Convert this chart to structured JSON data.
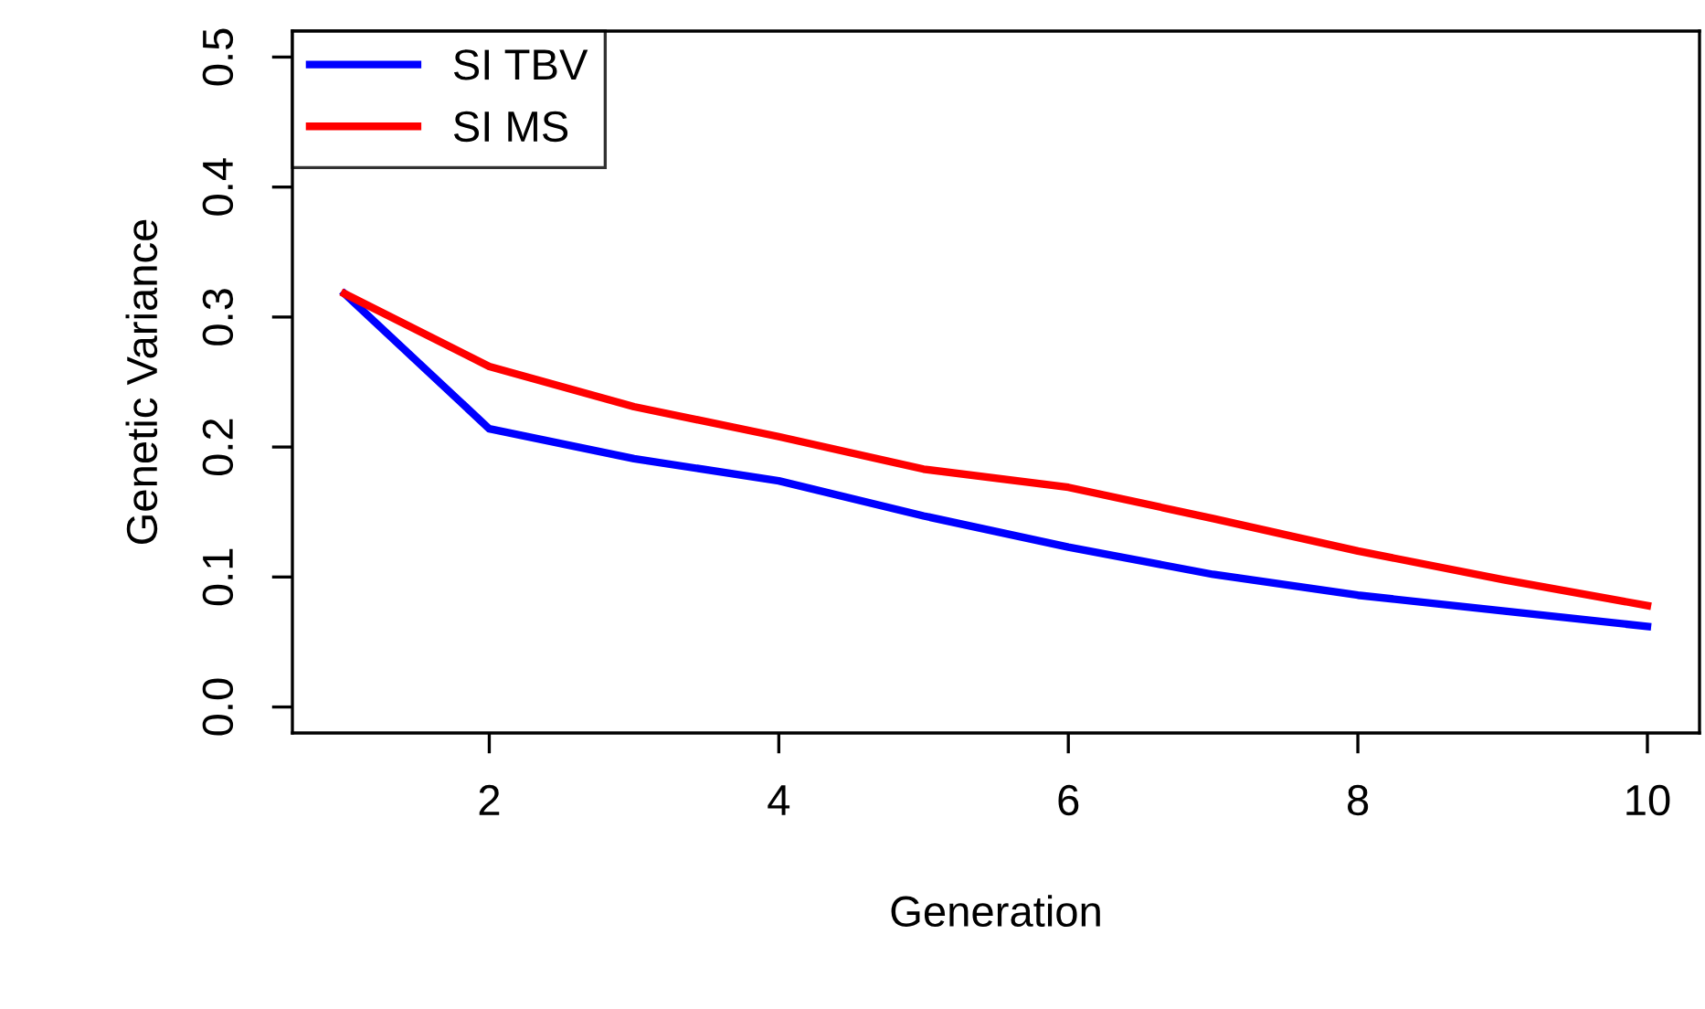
{
  "chart_data": {
    "type": "line",
    "xlabel": "Generation",
    "ylabel": "Genetic Variance",
    "x": [
      1,
      2,
      3,
      4,
      5,
      6,
      7,
      8,
      9,
      10
    ],
    "series": [
      {
        "name": "SI TBV",
        "color": "#0000ff",
        "values": [
          0.318,
          0.214,
          0.191,
          0.174,
          0.147,
          0.123,
          0.102,
          0.086,
          0.074,
          0.062
        ]
      },
      {
        "name": "SI MS",
        "color": "#ff0000",
        "values": [
          0.318,
          0.262,
          0.231,
          0.208,
          0.183,
          0.169,
          0.145,
          0.12,
          0.098,
          0.078
        ]
      }
    ],
    "xlim": [
      0.64,
      10.36
    ],
    "ylim": [
      -0.02,
      0.52
    ],
    "xticks": [
      2,
      4,
      6,
      8,
      10
    ],
    "yticks": [
      {
        "value": 0,
        "label": "0.0"
      },
      0.1,
      0.2,
      0.3,
      0.4,
      0.5
    ],
    "grid": false,
    "legend": "top left",
    "marker": "none",
    "line_style": "solid"
  }
}
